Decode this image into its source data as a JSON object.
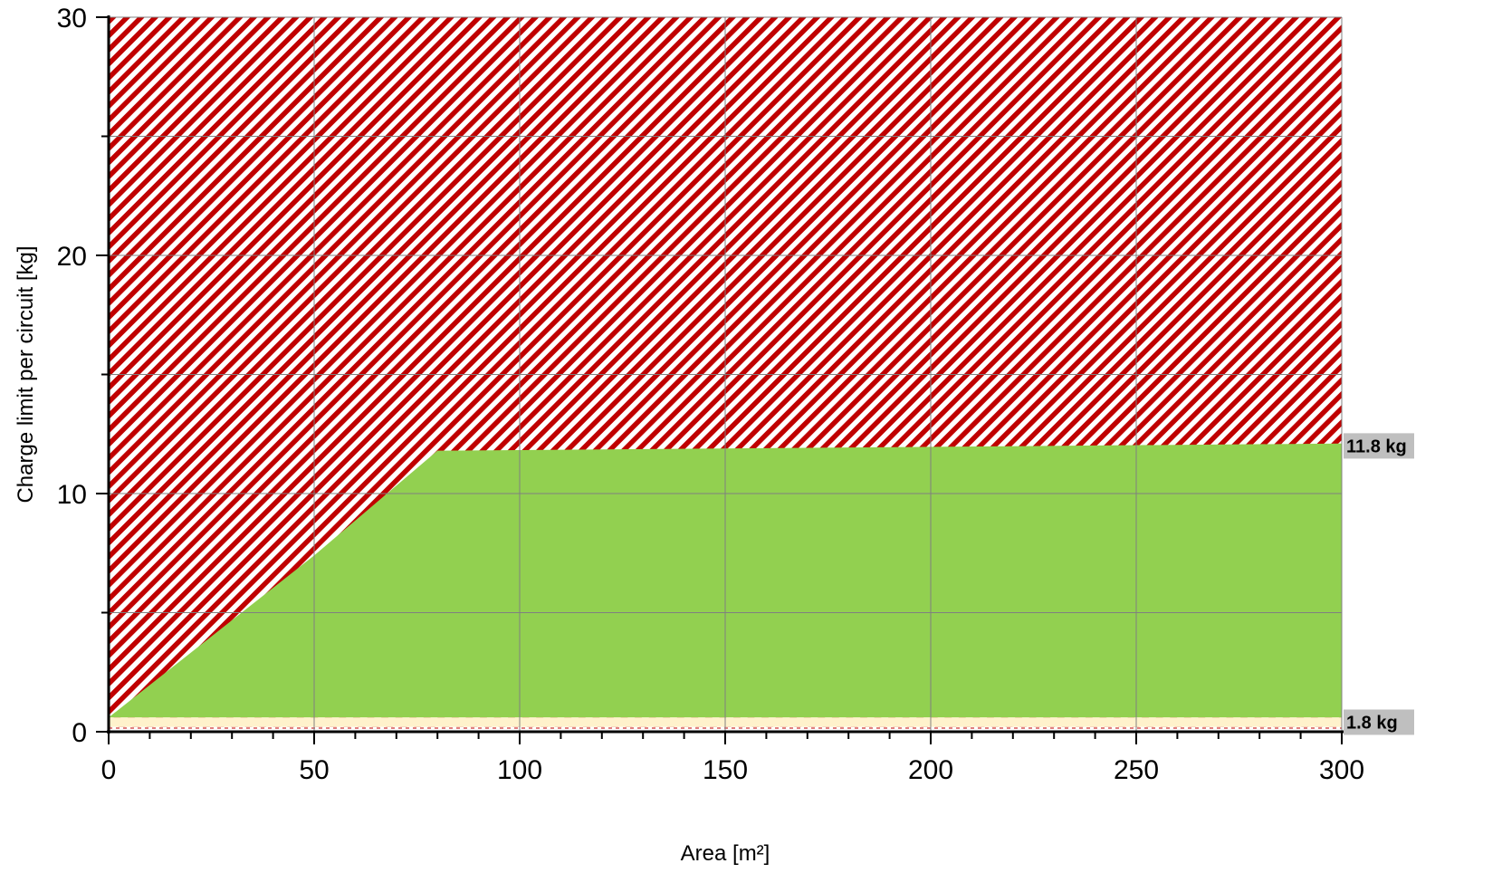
{
  "chart_data": {
    "type": "area",
    "xlabel": "Area [m²]",
    "ylabel": "Charge limit per circuit [kg]",
    "xlim": [
      0,
      300
    ],
    "ylim": [
      0,
      30
    ],
    "x_ticks": [
      0,
      50,
      100,
      150,
      200,
      250,
      300
    ],
    "y_ticks": [
      0,
      10,
      20,
      30
    ],
    "x_minor_step": 10,
    "y_minor_step": 5,
    "grid": true,
    "regions": [
      {
        "role": "above-limit",
        "pattern": "red-white-diagonal-hatch",
        "color": "#c00000",
        "y_top": 30
      },
      {
        "role": "allowed",
        "color": "#92d050",
        "lower_y": 0.6,
        "boundary": [
          {
            "x": 0,
            "y": 0.6
          },
          {
            "x": 50,
            "y": 7.4
          },
          {
            "x": 80,
            "y": 11.8
          },
          {
            "x": 300,
            "y": 12.1
          }
        ]
      },
      {
        "role": "minimum-band",
        "color": "#fff2cc",
        "y_bottom": 0.2,
        "y_top": 0.6
      }
    ],
    "reference_labels": [
      {
        "text": "11.8 kg",
        "y": 12.0
      },
      {
        "text": "1.8 kg",
        "y": 0.4
      }
    ],
    "colors": {
      "hatch": "#c00000",
      "allowed": "#92d050",
      "band": "#fff2cc",
      "label_bg": "#bfbfbf",
      "grid": "#808080"
    }
  }
}
